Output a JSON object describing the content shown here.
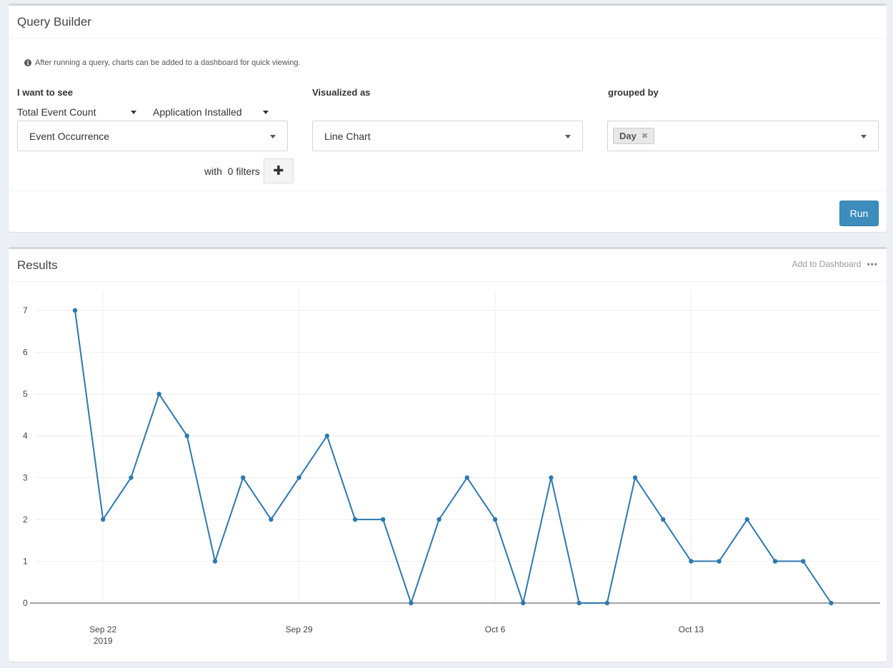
{
  "query_builder": {
    "title": "Query Builder",
    "info": "After running a query, charts can be added to a dashboard for quick viewing.",
    "see_label": "I want to see",
    "metric": "Total Event Count",
    "event": "Application Installed",
    "property": "Event Occurrence",
    "filters_text": "with  0 filters",
    "visualized_label": "Visualized as",
    "visualization": "Line Chart",
    "grouped_label": "grouped by",
    "group_tag": "Day",
    "run_label": "Run"
  },
  "results": {
    "title": "Results",
    "add_dashboard": "Add to Dashboard"
  },
  "chart_data": {
    "type": "line",
    "x_start": "2019-09-21",
    "x": [
      "2019-09-21",
      "2019-09-22",
      "2019-09-23",
      "2019-09-24",
      "2019-09-25",
      "2019-09-26",
      "2019-09-27",
      "2019-09-28",
      "2019-09-29",
      "2019-09-30",
      "2019-10-01",
      "2019-10-02",
      "2019-10-03",
      "2019-10-04",
      "2019-10-05",
      "2019-10-06",
      "2019-10-07",
      "2019-10-08",
      "2019-10-09",
      "2019-10-10",
      "2019-10-11",
      "2019-10-12",
      "2019-10-13",
      "2019-10-14",
      "2019-10-15",
      "2019-10-16",
      "2019-10-17",
      "2019-10-18"
    ],
    "values": [
      7,
      2,
      3,
      5,
      4,
      1,
      3,
      2,
      3,
      4,
      2,
      2,
      0,
      2,
      3,
      2,
      0,
      3,
      0,
      0,
      3,
      2,
      1,
      1,
      2,
      1,
      1,
      0
    ],
    "x_ticks": [
      {
        "label": "Sep 22",
        "sub": "2019",
        "date": "2019-09-22"
      },
      {
        "label": "Sep 29",
        "sub": "",
        "date": "2019-09-29"
      },
      {
        "label": "Oct 6",
        "sub": "",
        "date": "2019-10-06"
      },
      {
        "label": "Oct 13",
        "sub": "",
        "date": "2019-10-13"
      }
    ],
    "y_ticks": [
      0,
      1,
      2,
      3,
      4,
      5,
      6,
      7
    ],
    "ylim": [
      0,
      7
    ],
    "color": "#2e78ae"
  }
}
